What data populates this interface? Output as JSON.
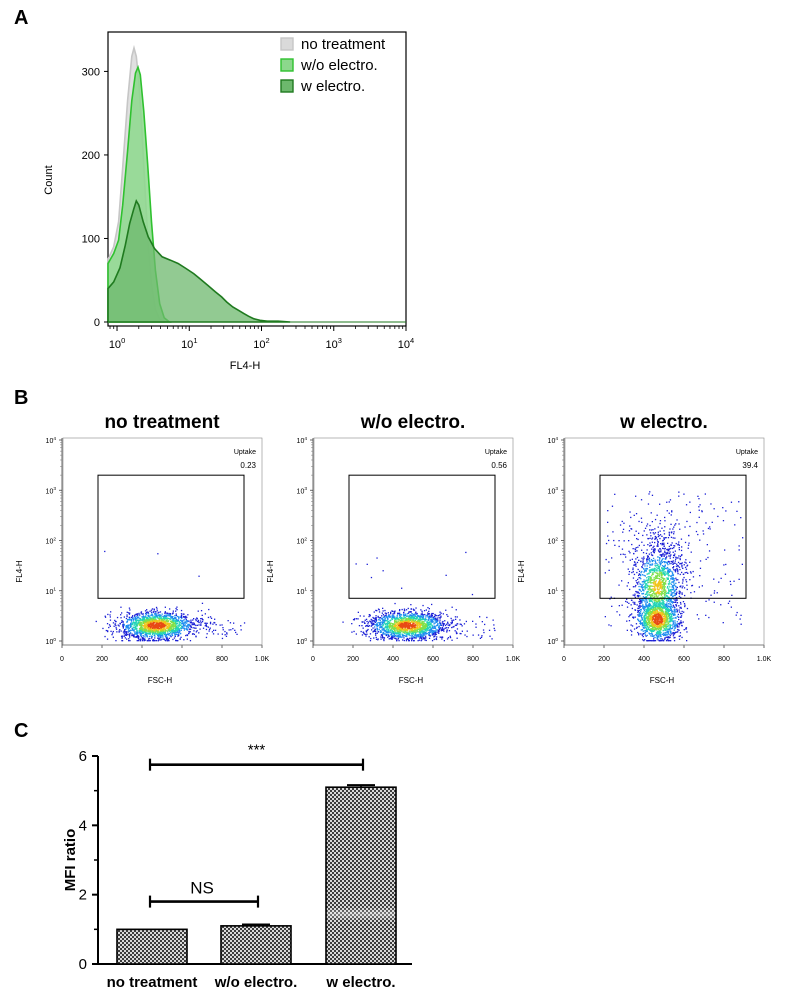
{
  "chart_data": [
    {
      "panel": "A",
      "type": "area",
      "xlabel": "FL4-H",
      "ylabel": "Count",
      "xscale": "log",
      "xlim": [
        0.75,
        10000
      ],
      "ylim": [
        0,
        340
      ],
      "x_ticks": [
        {
          "base": "10",
          "exp": "0",
          "value": 1
        },
        {
          "base": "10",
          "exp": "1",
          "value": 10
        },
        {
          "base": "10",
          "exp": "2",
          "value": 100
        },
        {
          "base": "10",
          "exp": "3",
          "value": 1000
        },
        {
          "base": "10",
          "exp": "4",
          "value": 10000
        }
      ],
      "y_ticks": [
        0,
        100,
        200,
        300
      ],
      "legend_position": "top-right",
      "series": [
        {
          "name": "no treatment",
          "fill": "#dadada",
          "stroke": "#c6c6c6",
          "points": [
            [
              0.75,
              75
            ],
            [
              0.9,
              90
            ],
            [
              1.05,
              120
            ],
            [
              1.2,
              185
            ],
            [
              1.4,
              265
            ],
            [
              1.6,
              318
            ],
            [
              1.72,
              328
            ],
            [
              1.85,
              318
            ],
            [
              2.0,
              288
            ],
            [
              2.2,
              232
            ],
            [
              2.45,
              158
            ],
            [
              2.7,
              92
            ],
            [
              3.0,
              45
            ],
            [
              3.4,
              15
            ],
            [
              3.9,
              3
            ],
            [
              4.6,
              0
            ]
          ]
        },
        {
          "name": "w/o electro.",
          "fill": "#8cd88c",
          "stroke": "#2fc12f",
          "points": [
            [
              0.75,
              70
            ],
            [
              0.9,
              82
            ],
            [
              1.05,
              98
            ],
            [
              1.2,
              140
            ],
            [
              1.4,
              205
            ],
            [
              1.6,
              265
            ],
            [
              1.8,
              298
            ],
            [
              1.95,
              305
            ],
            [
              2.1,
              296
            ],
            [
              2.35,
              252
            ],
            [
              2.65,
              190
            ],
            [
              3.0,
              120
            ],
            [
              3.4,
              62
            ],
            [
              3.9,
              22
            ],
            [
              4.5,
              5
            ],
            [
              5.3,
              0
            ]
          ]
        },
        {
          "name": "w electro.",
          "fill": "#6db86d",
          "stroke": "#1f7a1f",
          "points": [
            [
              0.75,
              40
            ],
            [
              0.9,
              48
            ],
            [
              1.1,
              65
            ],
            [
              1.3,
              92
            ],
            [
              1.5,
              118
            ],
            [
              1.7,
              135
            ],
            [
              1.85,
              145
            ],
            [
              2.0,
              140
            ],
            [
              2.3,
              120
            ],
            [
              2.7,
              102
            ],
            [
              3.3,
              88
            ],
            [
              4.2,
              78
            ],
            [
              5.5,
              74
            ],
            [
              7.0,
              70
            ],
            [
              9.0,
              64
            ],
            [
              11.5,
              58
            ],
            [
              14,
              52
            ],
            [
              18,
              44
            ],
            [
              23,
              36
            ],
            [
              28,
              30
            ],
            [
              33,
              24
            ],
            [
              40,
              18
            ],
            [
              48,
              14
            ],
            [
              57,
              10
            ],
            [
              66,
              7
            ],
            [
              78,
              4
            ],
            [
              95,
              2
            ],
            [
              120,
              1
            ],
            [
              170,
              1
            ],
            [
              250,
              0
            ]
          ]
        }
      ]
    },
    {
      "panel": "B",
      "type": "scatter",
      "xlabel": "FSC-H",
      "ylabel": "FL4-H",
      "x_ticks": [
        "0",
        "200",
        "400",
        "600",
        "800",
        "1.0K"
      ],
      "x_tick_values": [
        0,
        200,
        400,
        600,
        800,
        1000
      ],
      "y_ticks": [
        {
          "base": "10",
          "exp": "0"
        },
        {
          "base": "10",
          "exp": "1"
        },
        {
          "base": "10",
          "exp": "2"
        },
        {
          "base": "10",
          "exp": "3"
        },
        {
          "base": "10",
          "exp": "4"
        }
      ],
      "gate": {
        "name": "Uptake",
        "x_range": [
          180,
          910
        ],
        "y_range_log10": [
          0.85,
          3.3
        ]
      },
      "plots": [
        {
          "title": "no treatment",
          "gate_label": "Uptake",
          "gate_value": "0.23"
        },
        {
          "title": "w/o electro.",
          "gate_label": "Uptake",
          "gate_value": "0.56"
        },
        {
          "title": "w electro.",
          "gate_label": "Uptake",
          "gate_value": "39.4"
        }
      ]
    },
    {
      "panel": "C",
      "type": "bar",
      "ylabel": "MFI ratio",
      "ylim": [
        0,
        6
      ],
      "y_ticks": [
        0,
        2,
        4,
        6
      ],
      "categories": [
        "no treatment",
        "w/o electro.",
        "w electro."
      ],
      "values": [
        1.0,
        1.1,
        5.1
      ],
      "errors": [
        0.0,
        0.04,
        0.06
      ],
      "significance": [
        {
          "from": 0,
          "to": 1,
          "label": "NS"
        },
        {
          "from": 0,
          "to": 2,
          "label": "***"
        }
      ]
    }
  ]
}
